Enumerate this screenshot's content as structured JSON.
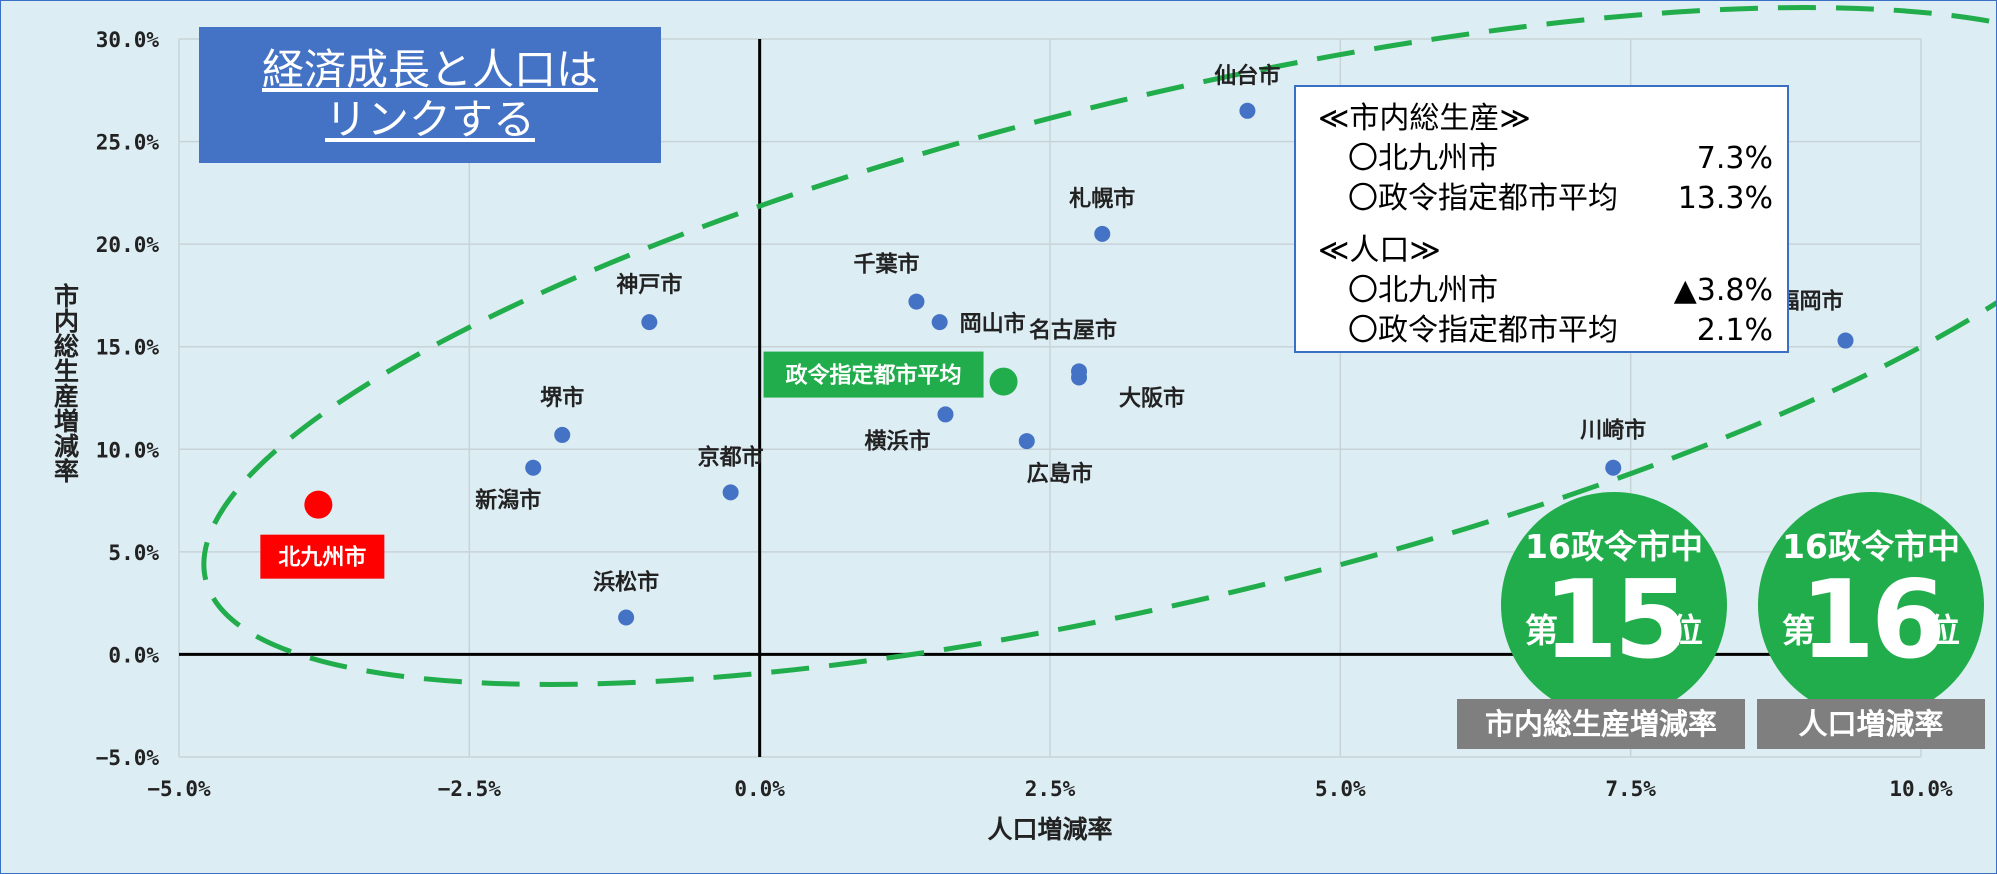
{
  "title_lines": [
    "経済成長と人口は",
    "リンクする"
  ],
  "chart_data": {
    "type": "scatter",
    "xlabel": "人口増減率",
    "ylabel": "市内総生産増減率",
    "xlim": [
      -5.0,
      10.0
    ],
    "ylim": [
      -5.0,
      30.0
    ],
    "x_ticks": [
      "−5.0%",
      "−2.5%",
      "0.0%",
      "2.5%",
      "5.0%",
      "7.5%",
      "10.0%"
    ],
    "y_ticks": [
      "−5.0%",
      "0.0%",
      "5.0%",
      "10.0%",
      "15.0%",
      "20.0%",
      "25.0%",
      "30.0%"
    ],
    "grid": true,
    "points": [
      {
        "name": "仙台市",
        "x": 4.2,
        "y": 26.5
      },
      {
        "name": "札幌市",
        "x": 2.95,
        "y": 20.5
      },
      {
        "name": "千葉市",
        "x": 1.35,
        "y": 17.2
      },
      {
        "name": "岡山市",
        "x": 1.55,
        "y": 16.2
      },
      {
        "name": "神戸市",
        "x": -0.95,
        "y": 16.2
      },
      {
        "name": "名古屋市",
        "x": 2.75,
        "y": 13.8
      },
      {
        "name": "大阪市",
        "x": 2.75,
        "y": 13.5
      },
      {
        "name": "横浜市",
        "x": 1.6,
        "y": 11.7
      },
      {
        "name": "広島市",
        "x": 2.3,
        "y": 10.4
      },
      {
        "name": "堺市",
        "x": -1.7,
        "y": 10.7
      },
      {
        "name": "新潟市",
        "x": -1.95,
        "y": 9.1
      },
      {
        "name": "京都市",
        "x": -0.25,
        "y": 7.9
      },
      {
        "name": "浜松市",
        "x": -1.15,
        "y": 1.8
      },
      {
        "name": "川崎市",
        "x": 7.35,
        "y": 9.1
      },
      {
        "name": "福岡市",
        "x": 9.35,
        "y": 15.3
      }
    ],
    "highlights": [
      {
        "name": "北九州市",
        "x": -3.8,
        "y": 7.3,
        "color": "#ff0000"
      },
      {
        "name": "政令指定都市平均",
        "x": 2.1,
        "y": 13.3,
        "color": "#21ad4b"
      }
    ],
    "colors": {
      "point": "#4472c4",
      "ellipse": "#21ad4b",
      "background": "#dcedf3"
    }
  },
  "info_box": {
    "section1": "≪市内総生産≫",
    "s1_row1_label": "〇北九州市",
    "s1_row1_value": "7.3%",
    "s1_row2_label": "〇政令指定都市平均",
    "s1_row2_value": "13.3%",
    "section2": "≪人口≫",
    "s2_row1_label": "〇北九州市",
    "s2_row1_value": "▲3.8%",
    "s2_row2_label": "〇政令指定都市平均",
    "s2_row2_value": "2.1%"
  },
  "badges": [
    {
      "top": "16政令市中",
      "dai": "第",
      "rank": "15",
      "i": "位",
      "caption": "市内総生産増減率"
    },
    {
      "top": "16政令市中",
      "dai": "第",
      "rank": "16",
      "i": "位",
      "caption": "人口増減率"
    }
  ]
}
